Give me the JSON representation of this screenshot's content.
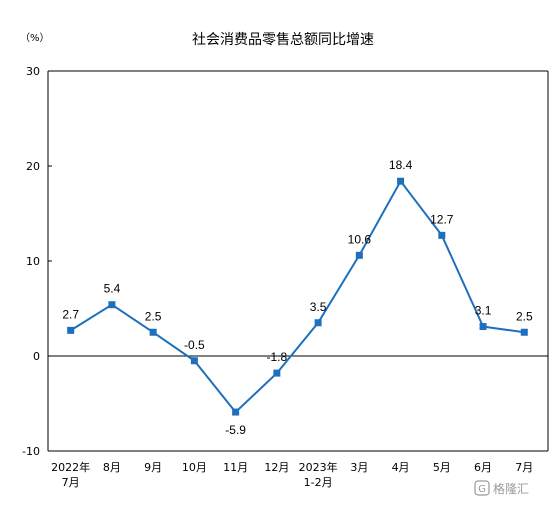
{
  "chart_data": {
    "type": "line",
    "title": "社会消费品零售总额同比增速",
    "unit": "（%）",
    "categories": [
      [
        "2022年",
        "7月"
      ],
      [
        "8月"
      ],
      [
        "9月"
      ],
      [
        "10月"
      ],
      [
        "11月"
      ],
      [
        "12月"
      ],
      [
        "2023年",
        "1-2月"
      ],
      [
        "3月"
      ],
      [
        "4月"
      ],
      [
        "5月"
      ],
      [
        "6月"
      ],
      [
        "7月"
      ]
    ],
    "values": [
      2.7,
      5.4,
      2.5,
      -0.5,
      -5.9,
      -1.8,
      3.5,
      10.6,
      18.4,
      12.7,
      3.1,
      2.5
    ],
    "data_labels": [
      "2.7",
      "5.4",
      "2.5",
      "-0.5",
      "-5.9",
      "-1.8",
      "3.5",
      "10.6",
      "18.4",
      "12.7",
      "3.1",
      "2.5"
    ],
    "yticks": [
      -10,
      0,
      10,
      20,
      30
    ],
    "ylim": [
      -10,
      30
    ],
    "grid": false,
    "legend": "none",
    "line_color": "#1f6fbf",
    "marker": "square"
  },
  "watermark": {
    "text": "格隆汇"
  }
}
